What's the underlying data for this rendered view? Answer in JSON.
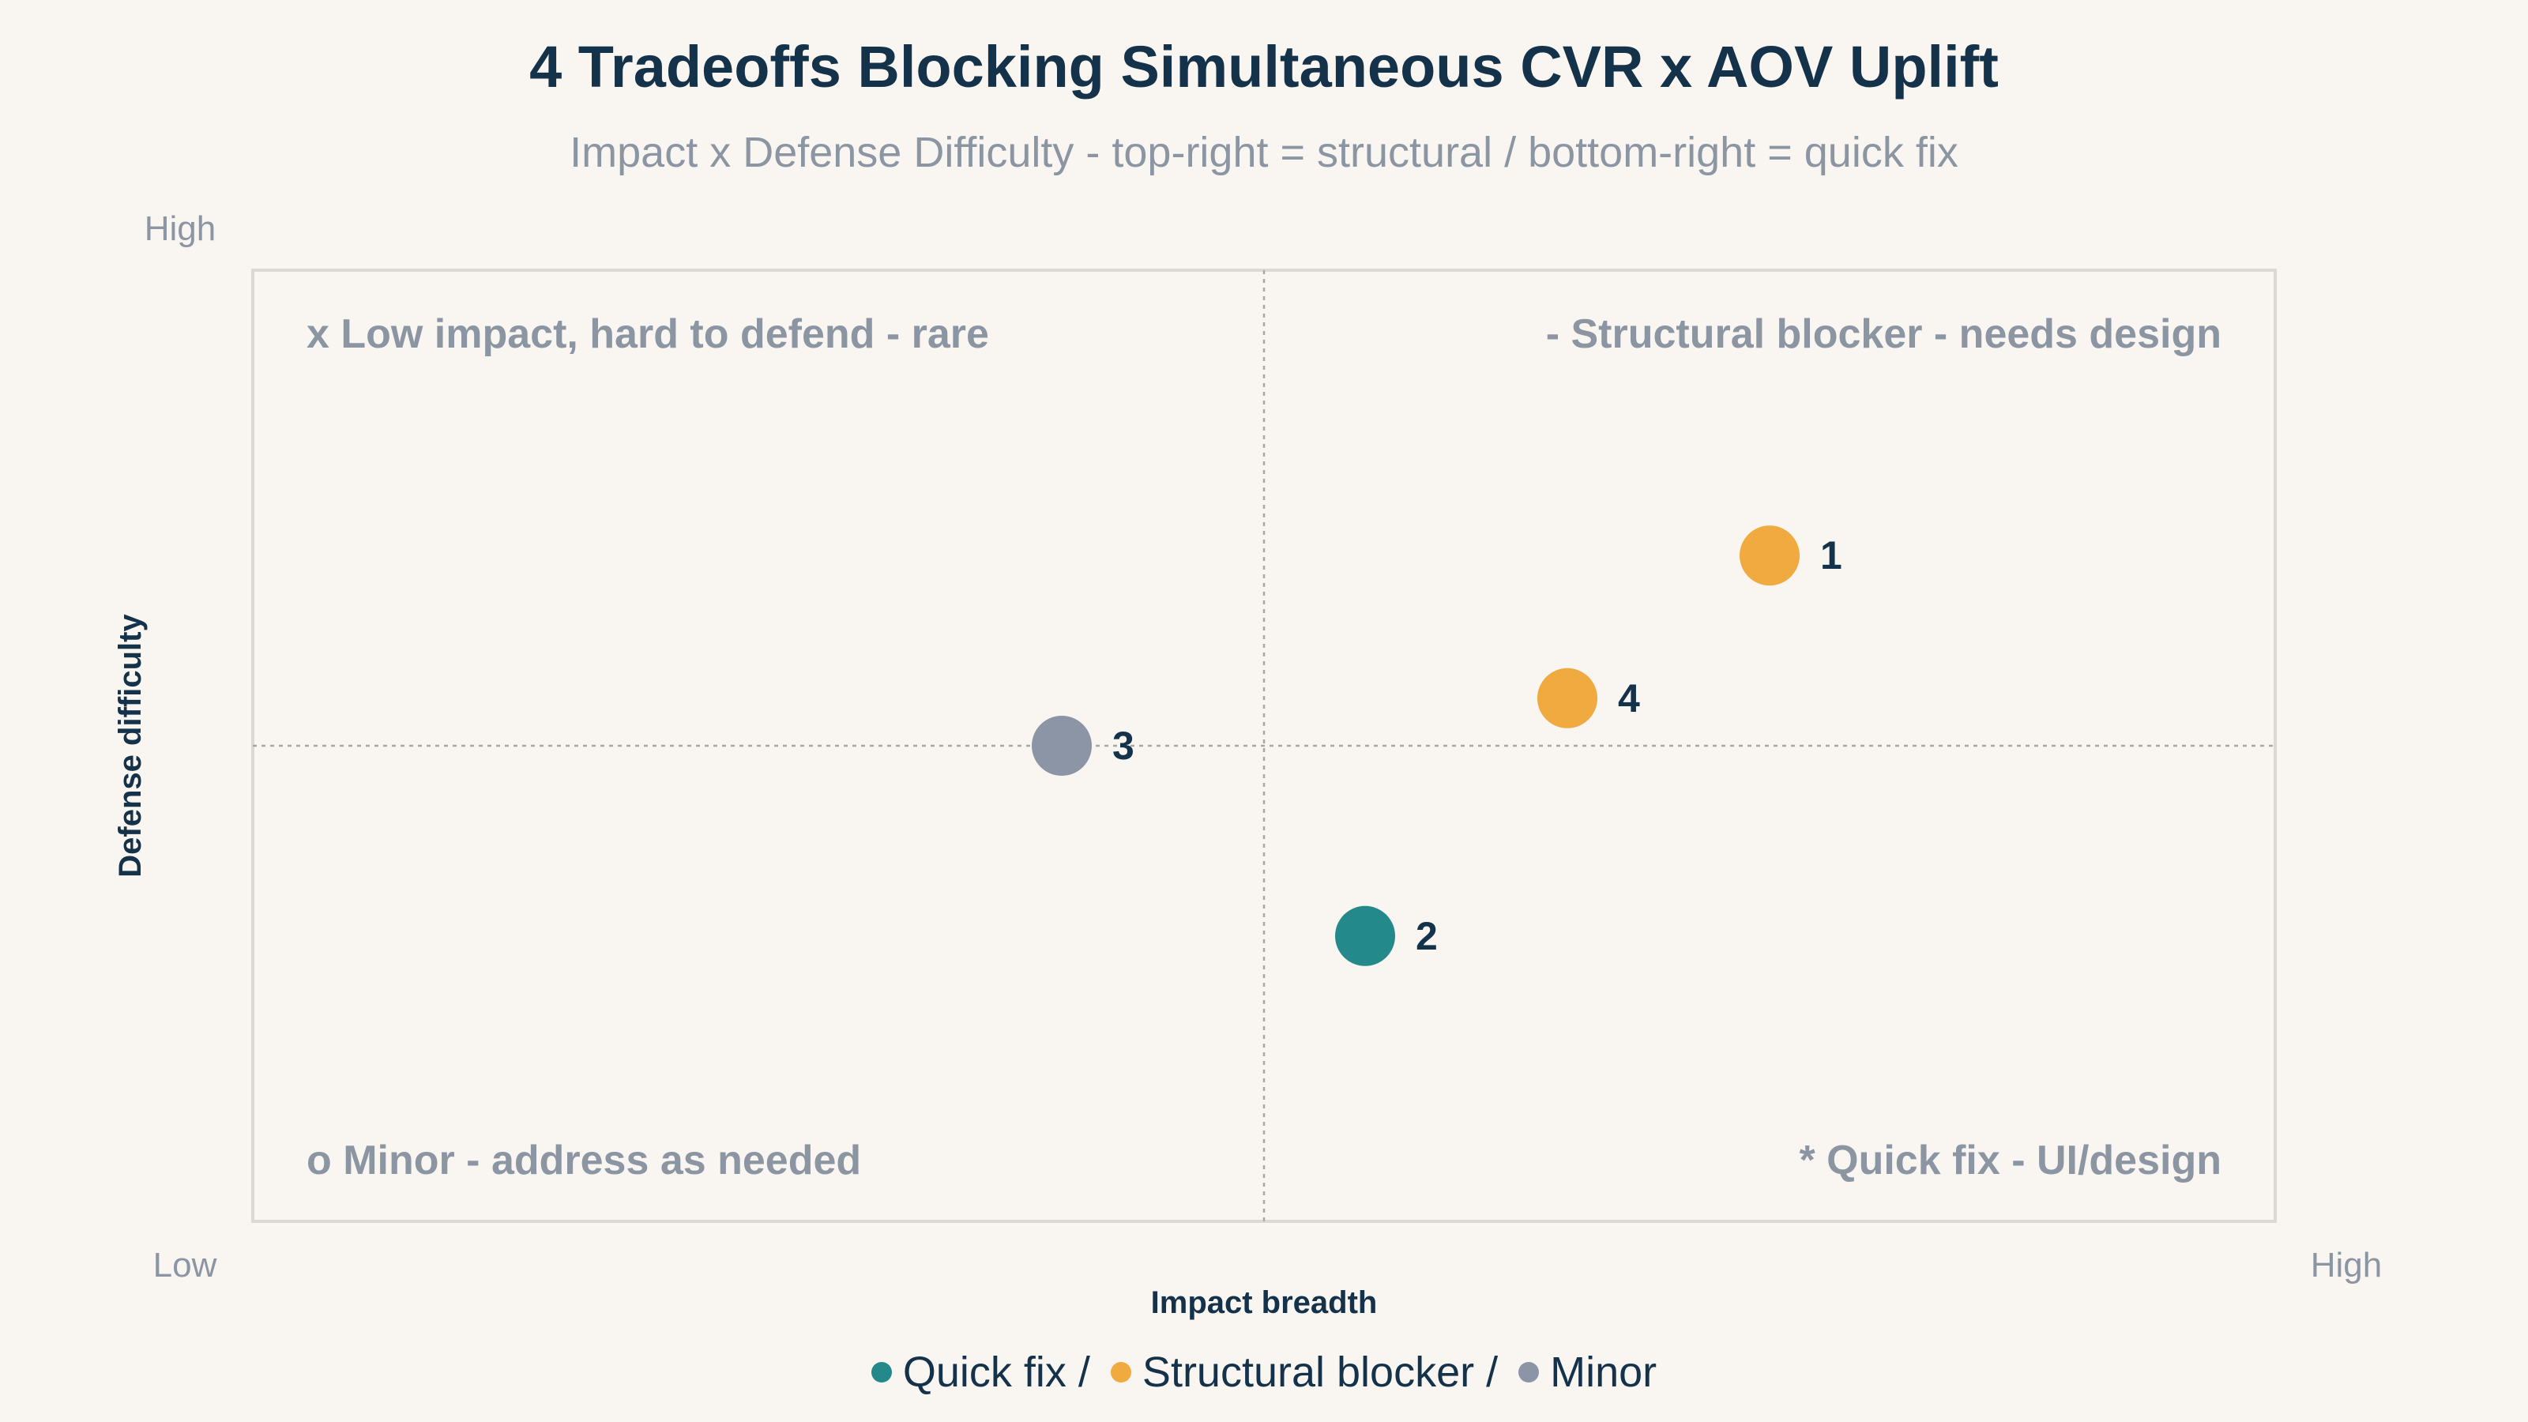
{
  "chart_data": {
    "type": "scatter",
    "title": "4 Tradeoffs Blocking Simultaneous CVR x AOV Uplift",
    "subtitle": "Impact x Defense Difficulty - top-right = structural / bottom-right = quick fix",
    "xlabel": "Impact breadth",
    "ylabel": "Defense difficulty",
    "xlim": [
      0,
      10
    ],
    "ylim": [
      0,
      10
    ],
    "x_tick_labels": {
      "low": "Low",
      "high": "High"
    },
    "y_tick_labels": {
      "high": "High"
    },
    "midlines": {
      "x": 5,
      "y": 5,
      "style": "dotted"
    },
    "grid": false,
    "quadrant_labels": {
      "top_left": "x Low impact, hard to defend - rare",
      "top_right": "- Structural blocker - needs design",
      "bottom_left": "o Minor - address as needed",
      "bottom_right": "* Quick fix - UI/design"
    },
    "points": [
      {
        "label": "1",
        "x": 7.5,
        "y": 7.0,
        "category": "Structural blocker"
      },
      {
        "label": "2",
        "x": 5.5,
        "y": 3.0,
        "category": "Quick fix"
      },
      {
        "label": "3",
        "x": 4.0,
        "y": 5.0,
        "category": "Minor"
      },
      {
        "label": "4",
        "x": 6.5,
        "y": 5.5,
        "category": "Structural blocker"
      }
    ],
    "categories": [
      {
        "name": "Quick fix",
        "legend_text": "Quick fix /",
        "color": "#23898a"
      },
      {
        "name": "Structural blocker",
        "legend_text": "Structural blocker /",
        "color": "#f0aa3f"
      },
      {
        "name": "Minor",
        "legend_text": "Minor",
        "color": "#8c95a5"
      }
    ],
    "legend_position": "bottom-center"
  },
  "colors": {
    "background": "#f9f6f1",
    "title": "#15324b",
    "muted": "#8c96a3",
    "frame": "#dcd9d4",
    "midline": "#a7a7a7"
  }
}
